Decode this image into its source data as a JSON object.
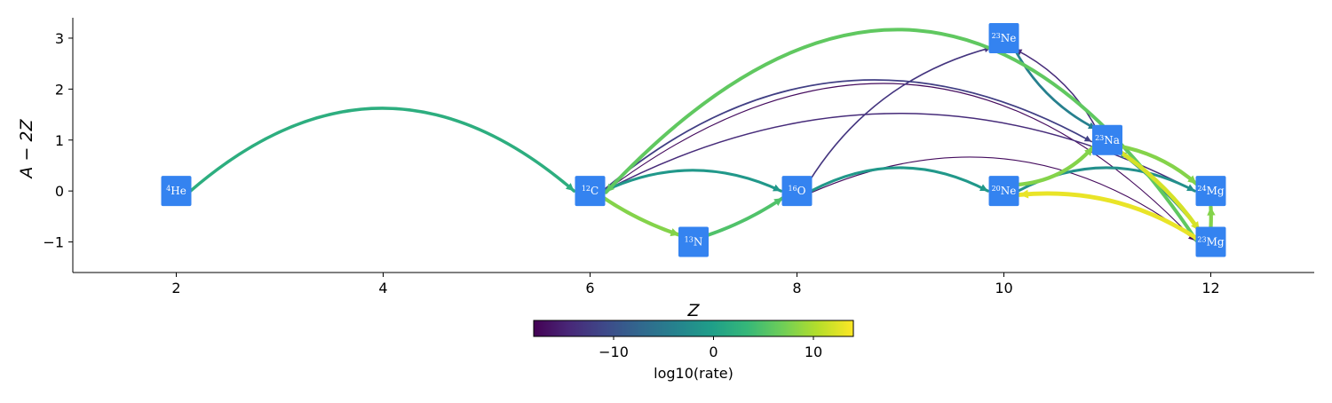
{
  "chart_data": {
    "type": "network",
    "xlabel": "Z",
    "ylabel": "A − 2Z",
    "xlim": [
      1,
      13
    ],
    "ylim": [
      -1.6,
      3.4
    ],
    "xticks": [
      2,
      4,
      6,
      8,
      10,
      12
    ],
    "yticks": [
      -1,
      0,
      1,
      2,
      3
    ],
    "xtick_labels": [
      "2",
      "4",
      "6",
      "8",
      "10",
      "12"
    ],
    "ytick_labels": [
      "−1",
      "0",
      "1",
      "2",
      "3"
    ],
    "colorbar": {
      "label": "log10(rate)",
      "colormap": "viridis",
      "range": [
        -18,
        14
      ],
      "ticks": [
        -10,
        0,
        10
      ],
      "tick_labels": [
        "−10",
        "0",
        "10"
      ]
    },
    "nodes": [
      {
        "id": "he4",
        "mass": "4",
        "symbol": "He",
        "z": 2,
        "n_minus_z": 0
      },
      {
        "id": "c12",
        "mass": "12",
        "symbol": "C",
        "z": 6,
        "n_minus_z": 0
      },
      {
        "id": "n13",
        "mass": "13",
        "symbol": "N",
        "z": 7,
        "n_minus_z": -1
      },
      {
        "id": "o16",
        "mass": "16",
        "symbol": "O",
        "z": 8,
        "n_minus_z": 0
      },
      {
        "id": "ne20",
        "mass": "20",
        "symbol": "Ne",
        "z": 10,
        "n_minus_z": 0
      },
      {
        "id": "ne23",
        "mass": "23",
        "symbol": "Ne",
        "z": 10,
        "n_minus_z": 3
      },
      {
        "id": "na23",
        "mass": "23",
        "symbol": "Na",
        "z": 11,
        "n_minus_z": 1
      },
      {
        "id": "mg24",
        "mass": "24",
        "symbol": "Mg",
        "z": 12,
        "n_minus_z": 0
      },
      {
        "id": "mg23",
        "mass": "23",
        "symbol": "Mg",
        "z": 12,
        "n_minus_z": -1
      }
    ],
    "edges": [
      {
        "from": "he4",
        "to": "c12",
        "log10_rate": 2,
        "curve": -0.8
      },
      {
        "from": "c12",
        "to": "n13",
        "log10_rate": 8,
        "curve": 0.1
      },
      {
        "from": "n13",
        "to": "o16",
        "log10_rate": 5,
        "curve": 0.1
      },
      {
        "from": "c12",
        "to": "o16",
        "log10_rate": -1,
        "curve": -0.4
      },
      {
        "from": "o16",
        "to": "ne20",
        "log10_rate": -1,
        "curve": -0.45
      },
      {
        "from": "ne20",
        "to": "mg24",
        "log10_rate": -2,
        "curve": -0.45
      },
      {
        "from": "mg23",
        "to": "c12",
        "log10_rate": 6,
        "curve": 1.2
      },
      {
        "from": "ne20",
        "to": "na23",
        "log10_rate": 8,
        "curve": 0.3
      },
      {
        "from": "na23",
        "to": "mg24",
        "log10_rate": 8,
        "curve": -0.2
      },
      {
        "from": "mg23",
        "to": "ne20",
        "log10_rate": 13,
        "curve": 0.3
      },
      {
        "from": "na23",
        "to": "mg23",
        "log10_rate": 12,
        "curve": -0.15
      },
      {
        "from": "mg23",
        "to": "mg24",
        "log10_rate": 8,
        "curve": 0.02
      },
      {
        "from": "mg23",
        "to": "na23",
        "log10_rate": -3,
        "curve": 0.1
      },
      {
        "from": "ne23",
        "to": "na23",
        "log10_rate": -4,
        "curve": 0.25
      },
      {
        "from": "na23",
        "to": "ne23",
        "log10_rate": -14,
        "curve": 0.25
      },
      {
        "from": "c12",
        "to": "na23",
        "log10_rate": -12,
        "curve": -0.65
      },
      {
        "from": "c12",
        "to": "mg24",
        "log10_rate": -14,
        "curve": -0.5
      },
      {
        "from": "o16",
        "to": "mg23",
        "log10_rate": -17,
        "curve": -0.55
      },
      {
        "from": "c12",
        "to": "mg23",
        "log10_rate": -17,
        "curve": -0.85
      },
      {
        "from": "o16",
        "to": "ne23",
        "log10_rate": -13,
        "curve": -0.35
      }
    ]
  }
}
